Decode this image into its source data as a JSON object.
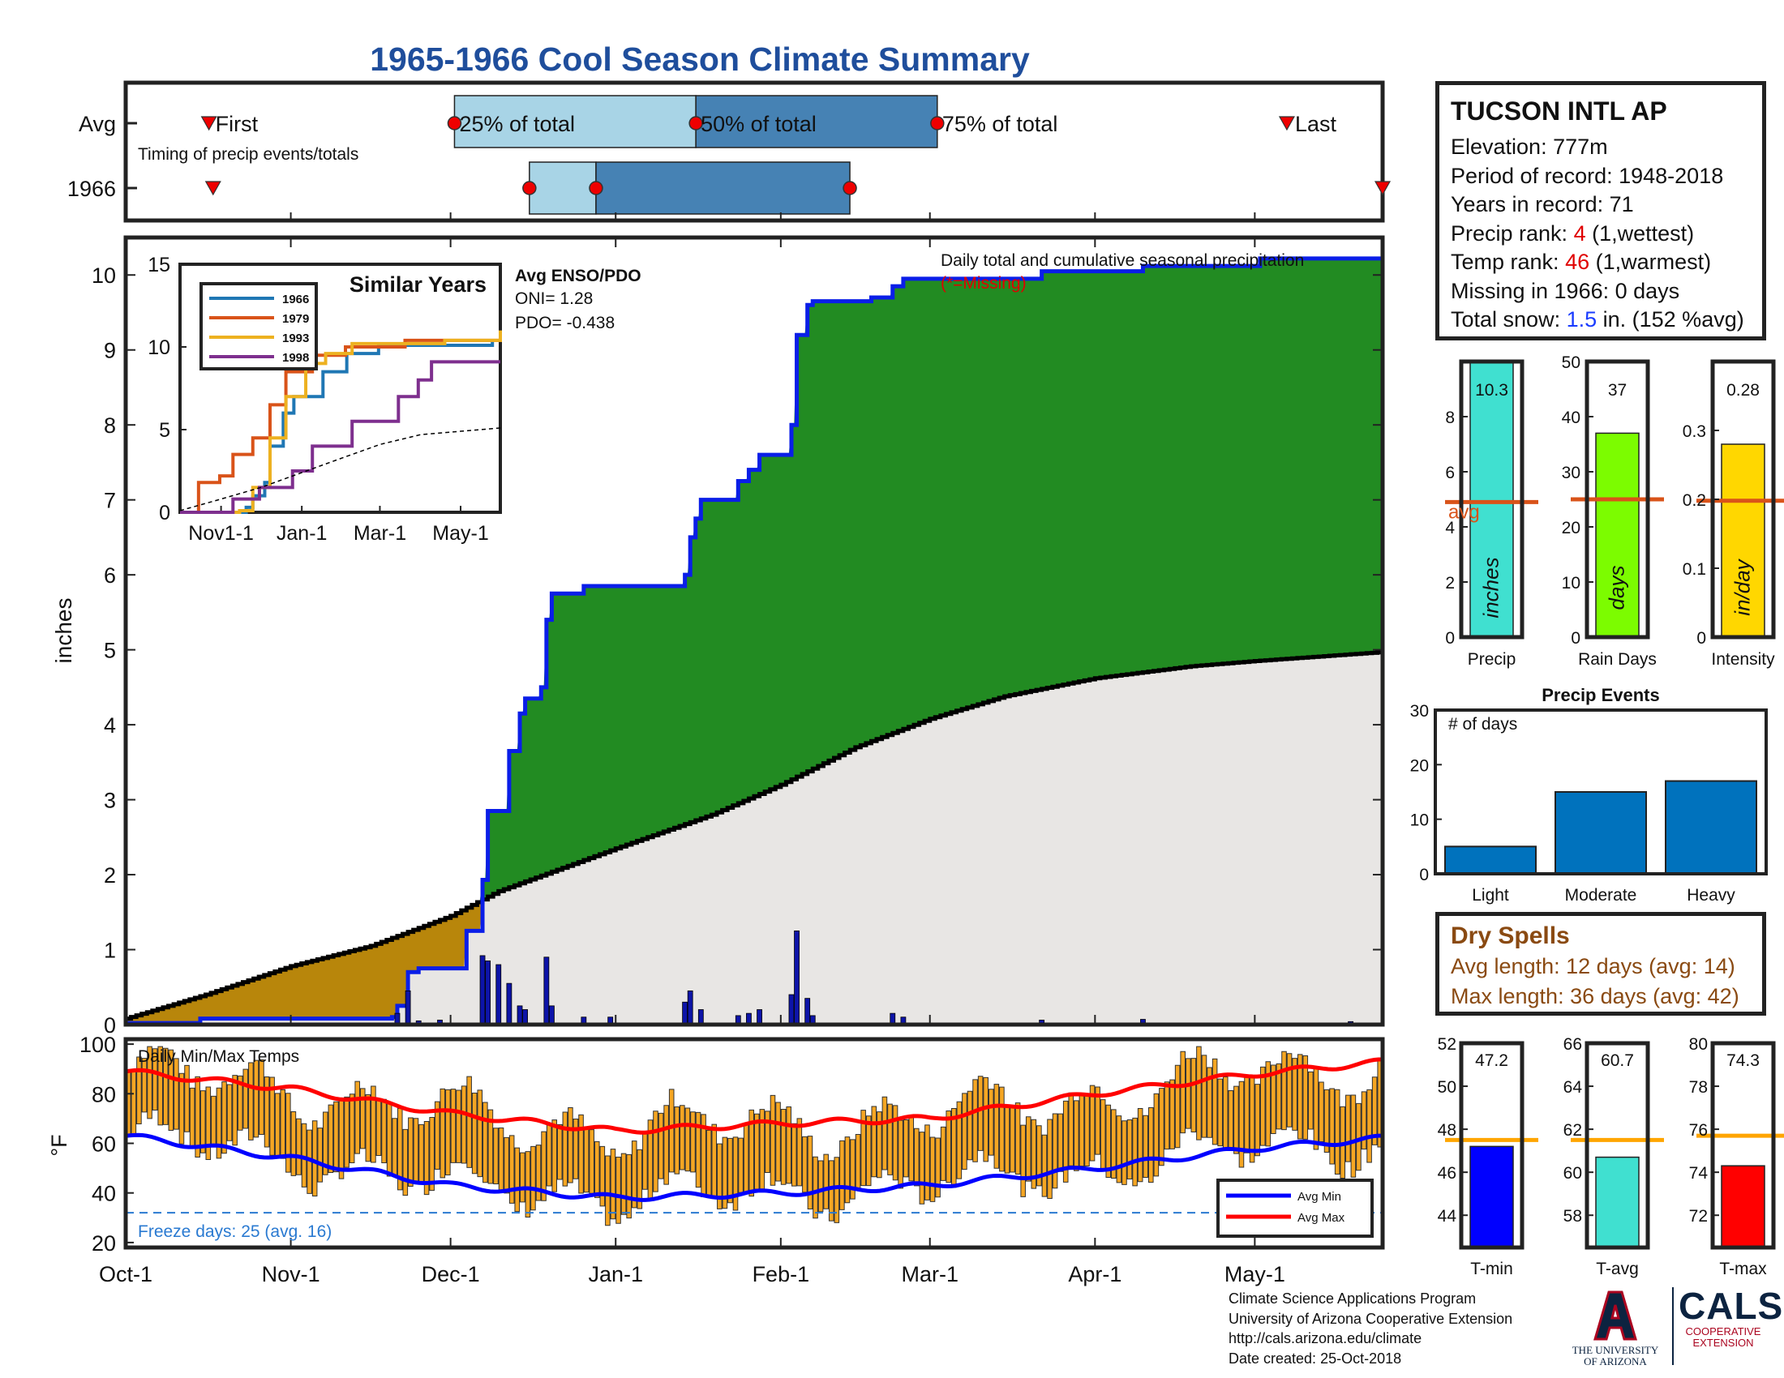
{
  "title": "1965-1966 Cool Season Climate Summary",
  "timing": {
    "row_labels": [
      "Avg",
      "1966"
    ],
    "caption": "Timing of precip events/totals",
    "first_label": "First",
    "p25_label": "25% of total",
    "p50_label": "50% of total",
    "p75_label": "75% of total",
    "last_label": "Last",
    "avg_days": {
      "first": 20,
      "p25": 79,
      "p50": 137,
      "p75": 195,
      "last": 279
    },
    "year_days": {
      "first": 21,
      "p25": 97,
      "p50": 113,
      "p75": 174,
      "last": 302
    }
  },
  "station": {
    "name": "TUCSON INTL AP",
    "elevation": "Elevation: 777m",
    "period": "Period of record: 1948-2018",
    "years": "Years in record: 71",
    "precip_rank_label": "Precip rank: ",
    "precip_rank_value": "4",
    "precip_rank_note": " (1,wettest)",
    "temp_rank_label": "Temp rank: ",
    "temp_rank_value": "46",
    "temp_rank_note": " (1,warmest)",
    "missing": "Missing in 1966: 0 days",
    "snow_label": "Total snow: ",
    "snow_value": "1.5",
    "snow_note": " in. (152 %avg)"
  },
  "dry_spells": {
    "title": "Dry Spells",
    "avg": "Avg length: 12 days (avg: 14)",
    "max": "Max length: 36 days (avg: 42)"
  },
  "footer": {
    "line1": "Climate Science Applications Program",
    "line2": "University of Arizona Cooperative Extension",
    "line3": "http://cals.arizona.edu/climate",
    "line4": " Date created: 25-Oct-2018"
  },
  "logos": {
    "ua_line1": "THE UNIVERSITY",
    "ua_line2": "OF ARIZONA",
    "cals": "CALS",
    "cals_line1": "COOPERATIVE",
    "cals_line2": "EXTENSION"
  },
  "chart_data": [
    {
      "id": "main-precip",
      "type": "area",
      "ylabel": "inches",
      "ylim": [
        0,
        10.5
      ],
      "yticks": [
        0,
        1,
        2,
        3,
        4,
        5,
        6,
        7,
        8,
        9,
        10
      ],
      "xlim_days": [
        0,
        236
      ],
      "xticks": [
        {
          "label": "Oct-1",
          "day": 0
        },
        {
          "label": "Nov-1",
          "day": 31
        },
        {
          "label": "Dec-1",
          "day": 61
        },
        {
          "label": "Jan-1",
          "day": 92
        },
        {
          "label": "Feb-1",
          "day": 123
        },
        {
          "label": "Mar-1",
          "day": 151
        },
        {
          "label": "Apr-1",
          "day": 182
        },
        {
          "label": "May-1",
          "day": 212
        }
      ],
      "annotation": "Daily total and cumulative seasonal precipitation",
      "missing_note": "(*=Missing)",
      "avg_cumulative": [
        {
          "day": 0,
          "in": 0.08
        },
        {
          "day": 15,
          "in": 0.4
        },
        {
          "day": 31,
          "in": 0.78
        },
        {
          "day": 46,
          "in": 1.05
        },
        {
          "day": 61,
          "in": 1.45
        },
        {
          "day": 70,
          "in": 1.78
        },
        {
          "day": 92,
          "in": 2.35
        },
        {
          "day": 110,
          "in": 2.8
        },
        {
          "day": 123,
          "in": 3.2
        },
        {
          "day": 137,
          "in": 3.7
        },
        {
          "day": 151,
          "in": 4.08
        },
        {
          "day": 165,
          "in": 4.38
        },
        {
          "day": 182,
          "in": 4.62
        },
        {
          "day": 200,
          "in": 4.78
        },
        {
          "day": 212,
          "in": 4.85
        },
        {
          "day": 236,
          "in": 4.97
        }
      ],
      "cumulative_1966": [
        {
          "day": 0,
          "in": 0.02
        },
        {
          "day": 14,
          "in": 0.08
        },
        {
          "day": 50,
          "in": 0.1
        },
        {
          "day": 51,
          "in": 0.25
        },
        {
          "day": 53,
          "in": 0.7
        },
        {
          "day": 55,
          "in": 0.75
        },
        {
          "day": 64,
          "in": 1.25
        },
        {
          "day": 67,
          "in": 1.93
        },
        {
          "day": 68,
          "in": 2.85
        },
        {
          "day": 72,
          "in": 3.65
        },
        {
          "day": 74,
          "in": 4.15
        },
        {
          "day": 75,
          "in": 4.35
        },
        {
          "day": 78,
          "in": 4.5
        },
        {
          "day": 79,
          "in": 5.4
        },
        {
          "day": 80,
          "in": 5.75
        },
        {
          "day": 86,
          "in": 5.85
        },
        {
          "day": 105,
          "in": 6.0
        },
        {
          "day": 106,
          "in": 6.5
        },
        {
          "day": 107,
          "in": 6.75
        },
        {
          "day": 108,
          "in": 7.0
        },
        {
          "day": 115,
          "in": 7.25
        },
        {
          "day": 117,
          "in": 7.4
        },
        {
          "day": 119,
          "in": 7.6
        },
        {
          "day": 125,
          "in": 8.0
        },
        {
          "day": 126,
          "in": 9.2
        },
        {
          "day": 128,
          "in": 9.6
        },
        {
          "day": 129,
          "in": 9.65
        },
        {
          "day": 140,
          "in": 9.7
        },
        {
          "day": 144,
          "in": 9.85
        },
        {
          "day": 146,
          "in": 9.95
        },
        {
          "day": 172,
          "in": 10.05
        },
        {
          "day": 191,
          "in": 10.12
        },
        {
          "day": 213,
          "in": 10.22
        },
        {
          "day": 236,
          "in": 10.3
        }
      ],
      "daily_bars": [
        {
          "day": 51,
          "in": 0.15
        },
        {
          "day": 53,
          "in": 0.45
        },
        {
          "day": 55,
          "in": 0.05
        },
        {
          "day": 59,
          "in": 0.06
        },
        {
          "day": 67,
          "in": 0.92
        },
        {
          "day": 68,
          "in": 0.85
        },
        {
          "day": 70,
          "in": 0.8
        },
        {
          "day": 72,
          "in": 0.55
        },
        {
          "day": 74,
          "in": 0.25
        },
        {
          "day": 75,
          "in": 0.2
        },
        {
          "day": 79,
          "in": 0.9
        },
        {
          "day": 80,
          "in": 0.25
        },
        {
          "day": 86,
          "in": 0.1
        },
        {
          "day": 91,
          "in": 0.1
        },
        {
          "day": 105,
          "in": 0.3
        },
        {
          "day": 106,
          "in": 0.45
        },
        {
          "day": 108,
          "in": 0.2
        },
        {
          "day": 115,
          "in": 0.12
        },
        {
          "day": 117,
          "in": 0.15
        },
        {
          "day": 119,
          "in": 0.2
        },
        {
          "day": 125,
          "in": 0.4
        },
        {
          "day": 126,
          "in": 1.25
        },
        {
          "day": 128,
          "in": 0.35
        },
        {
          "day": 129,
          "in": 0.12
        },
        {
          "day": 144,
          "in": 0.15
        },
        {
          "day": 146,
          "in": 0.1
        },
        {
          "day": 172,
          "in": 0.06
        },
        {
          "day": 191,
          "in": 0.07
        },
        {
          "day": 230,
          "in": 0.04
        }
      ]
    },
    {
      "id": "similar-years",
      "type": "line",
      "title": "Similar Years",
      "ylim": [
        0,
        15
      ],
      "yticks": [
        0,
        5,
        10,
        15
      ],
      "xticks": [
        {
          "label": "Nov1-1",
          "day": 31
        },
        {
          "label": "Jan-1",
          "day": 92
        },
        {
          "label": "Mar-1",
          "day": 151
        },
        {
          "label": "May-1",
          "day": 212
        }
      ],
      "xlim_days": [
        0,
        242
      ],
      "series": [
        {
          "name": "1966",
          "color": "#1f77b4",
          "points": [
            [
              0,
              0
            ],
            [
              50,
              0.3
            ],
            [
              55,
              1
            ],
            [
              64,
              1.8
            ],
            [
              68,
              4
            ],
            [
              78,
              6
            ],
            [
              86,
              7
            ],
            [
              108,
              8.5
            ],
            [
              126,
              9.6
            ],
            [
              150,
              10.1
            ],
            [
              236,
              10.3
            ]
          ]
        },
        {
          "name": "1979",
          "color": "#d95319",
          "points": [
            [
              0,
              0
            ],
            [
              14,
              1.8
            ],
            [
              30,
              2.2
            ],
            [
              40,
              3.5
            ],
            [
              55,
              4.5
            ],
            [
              68,
              6.5
            ],
            [
              80,
              8.5
            ],
            [
              100,
              9.5
            ],
            [
              125,
              10
            ],
            [
              170,
              10.4
            ],
            [
              242,
              10.6
            ]
          ]
        },
        {
          "name": "1993",
          "color": "#edb120",
          "points": [
            [
              0,
              0
            ],
            [
              45,
              0.1
            ],
            [
              55,
              1.5
            ],
            [
              68,
              4.5
            ],
            [
              80,
              7
            ],
            [
              95,
              9
            ],
            [
              110,
              9.6
            ],
            [
              130,
              10.2
            ],
            [
              200,
              10.4
            ],
            [
              242,
              11
            ]
          ]
        },
        {
          "name": "1998",
          "color": "#7e2f8e",
          "points": [
            [
              0,
              0
            ],
            [
              40,
              0.8
            ],
            [
              60,
              1.5
            ],
            [
              85,
              2.5
            ],
            [
              100,
              4
            ],
            [
              130,
              5.5
            ],
            [
              165,
              7
            ],
            [
              180,
              8
            ],
            [
              190,
              9.1
            ],
            [
              242,
              9.1
            ]
          ]
        },
        {
          "name": "avg",
          "color": "#000000",
          "dashed": true,
          "points": [
            [
              0,
              0.1
            ],
            [
              31,
              0.8
            ],
            [
              61,
              1.5
            ],
            [
              92,
              2.4
            ],
            [
              123,
              3.3
            ],
            [
              151,
              4.1
            ],
            [
              182,
              4.7
            ],
            [
              212,
              4.9
            ],
            [
              242,
              5.1
            ]
          ]
        }
      ]
    },
    {
      "id": "enso",
      "type": "table",
      "title": "Avg ENSO/PDO",
      "oni": "ONI= 1.28",
      "pdo": "PDO= -0.438"
    },
    {
      "id": "season-totals",
      "type": "bar",
      "panels": [
        {
          "label": "Precip",
          "unit": "inches",
          "value": 10.3,
          "value_label": "10.3",
          "avg": 4.9,
          "ylim": [
            0,
            10
          ],
          "yticks": [
            0,
            2,
            4,
            6,
            8
          ],
          "color": "#40e0d0",
          "avg_label": "avg"
        },
        {
          "label": "Rain Days",
          "unit": "days",
          "value": 37,
          "value_label": "37",
          "avg": 25,
          "ylim": [
            0,
            50
          ],
          "yticks": [
            0,
            10,
            20,
            30,
            40,
            50
          ],
          "color": "#7cfc00"
        },
        {
          "label": "Intensity",
          "unit": "in/day",
          "value": 0.28,
          "value_label": "0.28",
          "avg": 0.198,
          "ylim": [
            0,
            0.4
          ],
          "yticks": [
            0,
            0.1,
            0.2,
            0.3
          ],
          "color": "#ffd700"
        }
      ]
    },
    {
      "id": "precip-events",
      "type": "bar",
      "title": "Precip Events",
      "ylabel": "# of days",
      "ylim": [
        0,
        30
      ],
      "yticks": [
        0,
        10,
        20,
        30
      ],
      "categories": [
        "Light",
        "Moderate",
        "Heavy"
      ],
      "values": [
        5,
        15,
        17
      ],
      "color": "#0072bd"
    },
    {
      "id": "daily-temps",
      "type": "bar",
      "title": "Daily Min/Max Temps",
      "ylabel": "°F",
      "ylim": [
        18,
        102
      ],
      "yticks": [
        20,
        40,
        60,
        80,
        100
      ],
      "legend": [
        "Avg Min",
        "Avg Max"
      ],
      "legend_colors": [
        "#0000ff",
        "#ff0000"
      ],
      "freeze_line": 32,
      "freeze_label": "Freeze days: 25 (avg. 16)",
      "avg_max": [
        [
          0,
          89
        ],
        [
          31,
          82
        ],
        [
          61,
          72
        ],
        [
          92,
          65
        ],
        [
          123,
          68
        ],
        [
          151,
          70
        ],
        [
          182,
          80
        ],
        [
          212,
          88
        ],
        [
          242,
          94
        ]
      ],
      "avg_min": [
        [
          0,
          63
        ],
        [
          31,
          54
        ],
        [
          61,
          43
        ],
        [
          92,
          38
        ],
        [
          123,
          40
        ],
        [
          151,
          43
        ],
        [
          182,
          50
        ],
        [
          212,
          58
        ],
        [
          242,
          63
        ]
      ]
    },
    {
      "id": "temp-summary",
      "type": "bar",
      "panels": [
        {
          "label": "T-min",
          "value": 47.2,
          "value_label": "47.2",
          "avg": 47.5,
          "ylim": [
            42.5,
            52
          ],
          "yticks": [
            44,
            46,
            48,
            50,
            52
          ],
          "color": "#0000ff"
        },
        {
          "label": "T-avg",
          "value": 60.7,
          "value_label": "60.7",
          "avg": 61.5,
          "ylim": [
            56.5,
            66
          ],
          "yticks": [
            58,
            60,
            62,
            64,
            66
          ],
          "color": "#40e0d0"
        },
        {
          "label": "T-max",
          "value": 74.3,
          "value_label": "74.3",
          "avg": 75.7,
          "ylim": [
            70.5,
            80
          ],
          "yticks": [
            72,
            74,
            76,
            78,
            80
          ],
          "color": "#ff0000"
        }
      ]
    }
  ]
}
